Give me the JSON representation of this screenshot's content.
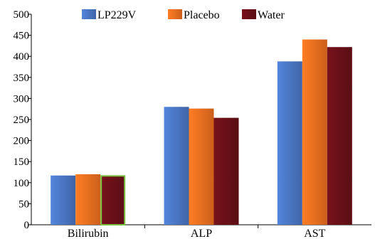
{
  "chart_data": {
    "type": "bar",
    "categories": [
      "Bilirubin",
      "ALP",
      "AST"
    ],
    "series": [
      {
        "name": "LP229V",
        "values": [
          117,
          280,
          388
        ],
        "color": "#4a77c4"
      },
      {
        "name": "Placebo",
        "values": [
          120,
          276,
          440
        ],
        "color": "#f07020"
      },
      {
        "name": "Water",
        "values": [
          116,
          254,
          422
        ],
        "color": "#6a1018"
      }
    ],
    "highlight": {
      "series": 2,
      "category": 0,
      "outline_color": "#7ac143"
    },
    "ylim": [
      0,
      500
    ],
    "yticks": [
      0,
      50,
      100,
      150,
      200,
      250,
      300,
      350,
      400,
      450,
      500
    ],
    "legend_position": "top-center",
    "grid": false
  }
}
